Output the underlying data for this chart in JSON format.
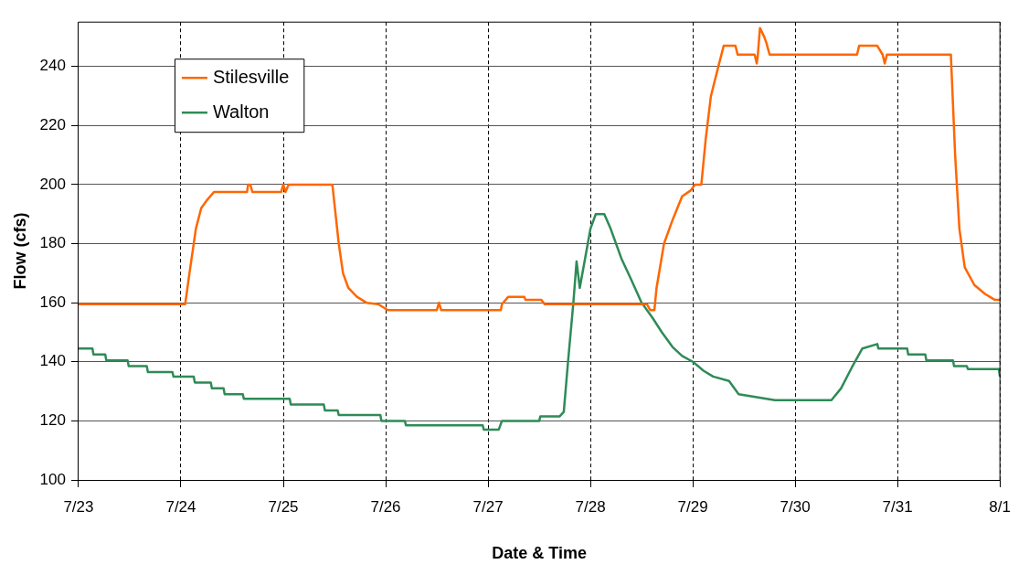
{
  "chart_data": {
    "type": "line",
    "xlabel": "Date & Time",
    "ylabel": "Flow (cfs)",
    "xlim": [
      "--07-23",
      "--08-01"
    ],
    "xticks": [
      {
        "value": "--07-23",
        "label": "7/23"
      },
      {
        "value": "--07-24",
        "label": "7/24"
      },
      {
        "value": "--07-25",
        "label": "7/25"
      },
      {
        "value": "--07-26",
        "label": "7/26"
      },
      {
        "value": "--07-27",
        "label": "7/27"
      },
      {
        "value": "--07-28",
        "label": "7/28"
      },
      {
        "value": "--07-29",
        "label": "7/29"
      },
      {
        "value": "--07-30",
        "label": "7/30"
      },
      {
        "value": "--07-31",
        "label": "7/31"
      },
      {
        "value": "--08-01",
        "label": "8/1"
      }
    ],
    "ylim": [
      100,
      255
    ],
    "yticks": [
      100,
      120,
      140,
      160,
      180,
      200,
      220,
      240
    ],
    "grid": true,
    "legend": "top left",
    "marker": "none",
    "line_style": "solid",
    "series": [
      {
        "name": "Stilesville",
        "color": "#ff6600",
        "x": [
          "--07-23T00:00",
          "--07-24T01:00",
          "--07-24T02:00",
          "--07-24T03:30",
          "--07-24T04:45",
          "--07-24T06:15",
          "--07-24T07:45",
          "--07-24T15:30",
          "--07-24T15:45",
          "--07-24T16:15",
          "--07-24T16:45",
          "--07-24T23:30",
          "--07-25T00:00",
          "--07-25T00:30",
          "--07-25T01:15",
          "--07-25T11:30",
          "--07-25T13:00",
          "--07-25T14:00",
          "--07-25T15:15",
          "--07-25T17:15",
          "--07-25T19:30",
          "--07-25T22:15",
          "--07-26T00:30",
          "--07-26T12:00",
          "--07-26T12:30",
          "--07-26T13:00",
          "--07-27T03:00",
          "--07-27T03:15",
          "--07-27T04:45",
          "--07-27T08:30",
          "--07-27T08:45",
          "--07-27T12:30",
          "--07-27T13:15",
          "--07-28T13:15",
          "--07-28T14:00",
          "--07-28T15:00",
          "--07-28T15:30",
          "--07-28T17:15",
          "--07-28T19:15",
          "--07-28T21:30",
          "--07-28T23:30",
          "--07-29T00:30",
          "--07-29T02:00",
          "--07-29T03:00",
          "--07-29T04:15",
          "--07-29T06:00",
          "--07-29T07:15",
          "--07-29T10:00",
          "--07-29T10:30",
          "--07-29T14:30",
          "--07-29T15:00",
          "--07-29T15:15",
          "--07-29T15:45",
          "--07-29T16:45",
          "--07-29T17:15",
          "--07-29T18:00",
          "--07-30T14:30",
          "--07-30T15:00",
          "--07-30T19:15",
          "--07-30T20:30",
          "--07-30T21:00",
          "--07-30T21:30",
          "--07-31T12:30",
          "--07-31T13:30",
          "--07-31T14:30",
          "--07-31T15:45",
          "--07-31T18:00",
          "--07-31T20:30",
          "--07-31T22:45",
          "--08-01T00:00"
        ],
        "values": [
          159.5,
          159.5,
          170,
          185,
          192,
          195,
          197.5,
          197.5,
          200,
          200,
          197.5,
          197.5,
          200,
          197.5,
          200,
          200,
          180,
          170,
          165,
          162,
          160,
          159.5,
          157.5,
          157.5,
          160,
          157.5,
          157.5,
          159.5,
          162,
          162,
          161,
          161,
          159.5,
          159.5,
          157.5,
          157.5,
          165,
          180,
          188,
          196,
          198,
          200,
          200,
          215,
          230,
          240,
          247,
          247,
          244,
          244,
          241,
          244,
          253,
          250,
          248,
          244,
          244,
          247,
          247,
          244,
          241,
          244,
          244,
          210,
          185,
          172,
          166,
          163,
          161,
          161
        ]
      },
      {
        "name": "Walton",
        "color": "#2e8b57",
        "x": [
          "--07-23T00:00",
          "--07-23T03:15",
          "--07-23T03:30",
          "--07-23T06:15",
          "--07-23T06:30",
          "--07-23T11:30",
          "--07-23T11:45",
          "--07-23T16:00",
          "--07-23T16:15",
          "--07-23T22:00",
          "--07-23T22:15",
          "--07-24T03:00",
          "--07-24T03:15",
          "--07-24T07:00",
          "--07-24T07:15",
          "--07-24T10:00",
          "--07-24T10:15",
          "--07-24T14:30",
          "--07-24T14:45",
          "--07-25T01:30",
          "--07-25T01:45",
          "--07-25T09:30",
          "--07-25T09:45",
          "--07-25T12:45",
          "--07-25T13:00",
          "--07-25T22:45",
          "--07-25T23:00",
          "--07-26T04:30",
          "--07-26T04:45",
          "--07-26T22:45",
          "--07-26T23:00",
          "--07-27T02:30",
          "--07-27T03:15",
          "--07-27T12:00",
          "--07-27T12:15",
          "--07-27T16:45",
          "--07-27T17:45",
          "--07-27T18:45",
          "--07-27T20:00",
          "--07-27T20:45",
          "--07-27T21:30",
          "--07-27T22:45",
          "--07-28T00:00",
          "--07-28T01:15",
          "--07-28T03:15",
          "--07-28T04:45",
          "--07-28T07:15",
          "--07-28T09:30",
          "--07-28T12:00",
          "--07-28T14:30",
          "--07-28T16:45",
          "--07-28T19:15",
          "--07-28T21:30",
          "--07-29T00:00",
          "--07-29T02:30",
          "--07-29T04:45",
          "--07-29T08:30",
          "--07-29T10:45",
          "--07-29T19:15",
          "--07-30T08:30",
          "--07-30T10:45",
          "--07-30T13:15",
          "--07-30T15:45",
          "--07-30T19:15",
          "--07-30T19:30",
          "--07-31T02:15",
          "--07-31T02:30",
          "--07-31T06:30",
          "--07-31T06:45",
          "--07-31T13:00",
          "--07-31T13:15",
          "--07-31T16:15",
          "--07-31T16:30",
          "--07-31T23:45",
          "--08-01T00:00"
        ],
        "values": [
          144.5,
          144.5,
          142.5,
          142.5,
          140.5,
          140.5,
          138.5,
          138.5,
          136.5,
          136.5,
          135,
          135,
          133,
          133,
          131,
          131,
          129,
          129,
          127.5,
          127.5,
          125.5,
          125.5,
          123.5,
          123.5,
          122,
          122,
          120,
          120,
          118.5,
          118.5,
          117,
          117,
          120,
          120,
          121.5,
          121.5,
          123,
          140,
          160,
          174,
          165,
          175,
          185,
          190,
          190,
          185,
          175,
          168,
          160,
          155,
          150,
          145,
          142,
          140,
          137,
          135,
          133.5,
          129,
          127,
          127,
          131,
          138,
          144.5,
          146,
          144.5,
          144.5,
          142.5,
          142.5,
          140.5,
          140.5,
          138.5,
          138.5,
          137.5,
          137.5,
          135
        ]
      }
    ]
  }
}
